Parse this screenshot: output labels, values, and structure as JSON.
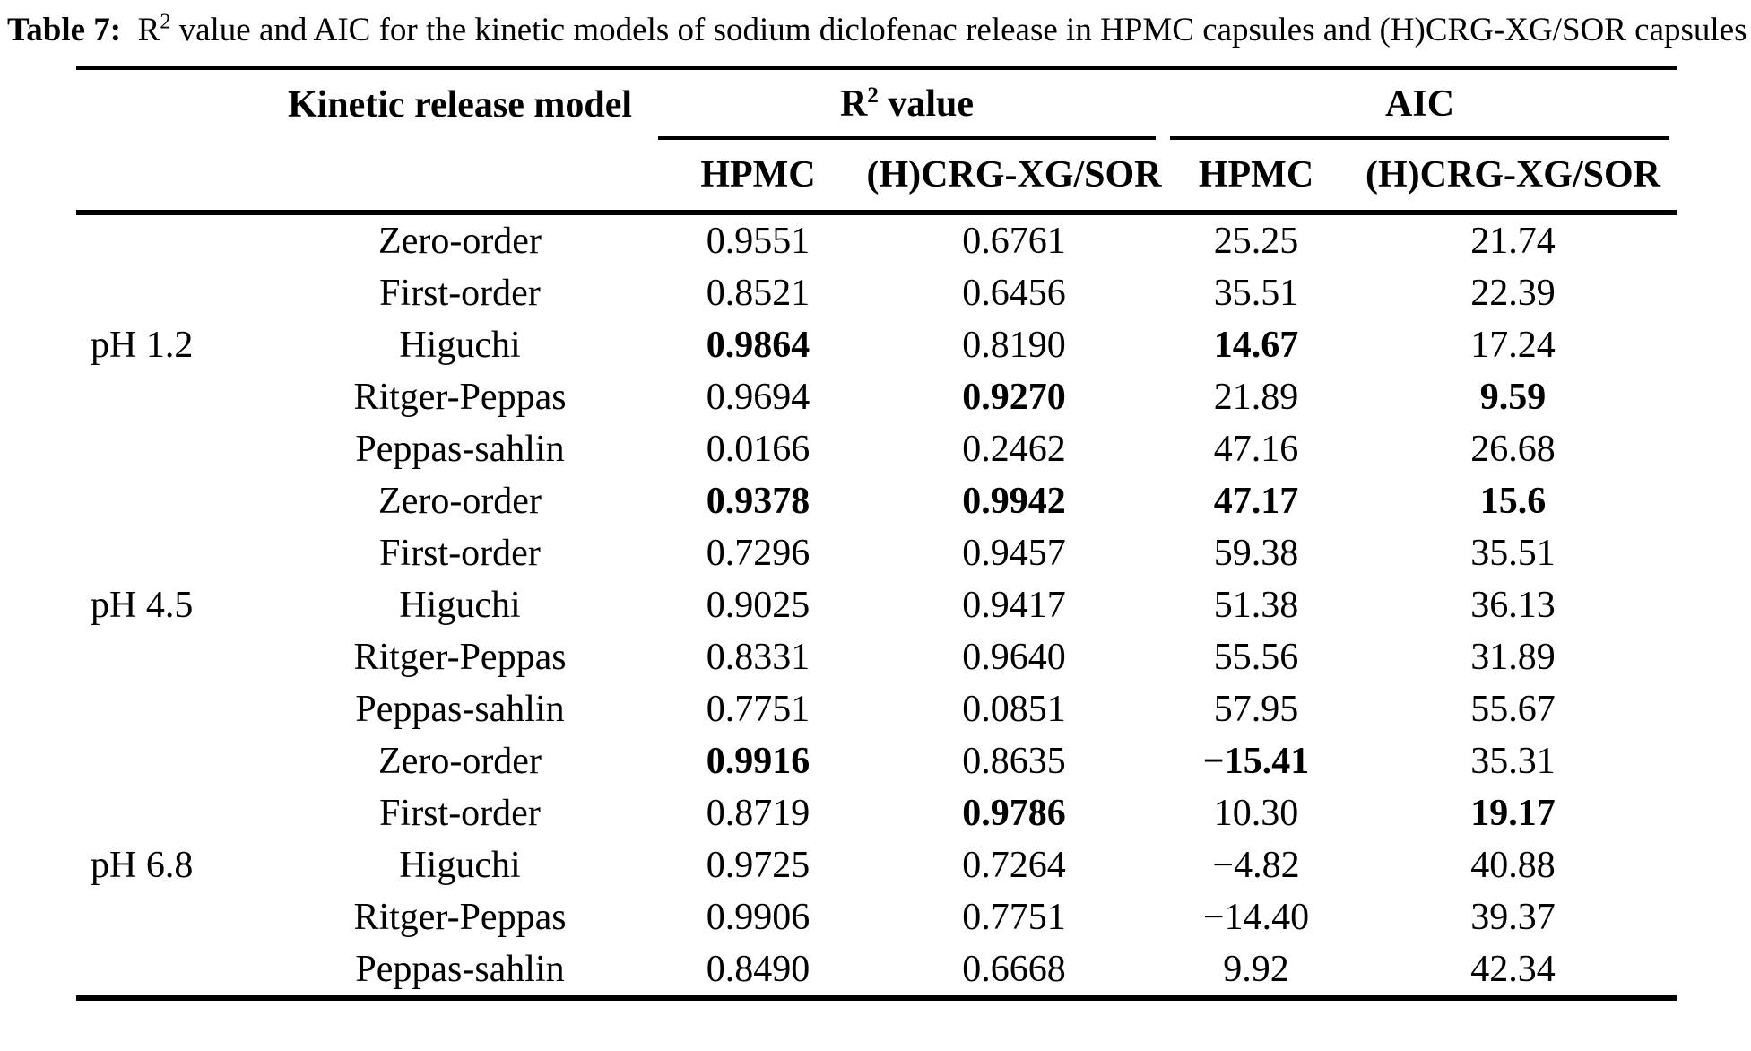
{
  "caption": {
    "label": "Table 7:",
    "r": "R",
    "sup": "2",
    "rest": " value and AIC for the kinetic models of sodium diclofenac release in HPMC capsules and (H)CRG-XG/SOR capsules"
  },
  "table": {
    "header": {
      "model_col": "Kinetic release model",
      "r2_group": {
        "pre": "R",
        "sup": "2",
        "post": " value"
      },
      "aic_group": "AIC",
      "subcols": [
        "HPMC",
        "(H)CRG-XG/SOR",
        "HPMC",
        "(H)CRG-XG/SOR"
      ]
    },
    "sections": [
      {
        "ph": "pH 1.2",
        "rows": [
          {
            "model": "Zero-order",
            "r2_hpmc": "0.9551",
            "r2_crg": "0.6761",
            "aic_hpmc": "25.25",
            "aic_crg": "21.74",
            "bold": []
          },
          {
            "model": "First-order",
            "r2_hpmc": "0.8521",
            "r2_crg": "0.6456",
            "aic_hpmc": "35.51",
            "aic_crg": "22.39",
            "bold": []
          },
          {
            "model": "Higuchi",
            "r2_hpmc": "0.9864",
            "r2_crg": "0.8190",
            "aic_hpmc": "14.67",
            "aic_crg": "17.24",
            "bold": [
              "r2_hpmc",
              "aic_hpmc"
            ]
          },
          {
            "model": "Ritger-Peppas",
            "r2_hpmc": "0.9694",
            "r2_crg": "0.9270",
            "aic_hpmc": "21.89",
            "aic_crg": "9.59",
            "bold": [
              "r2_crg",
              "aic_crg"
            ]
          },
          {
            "model": "Peppas-sahlin",
            "r2_hpmc": "0.0166",
            "r2_crg": "0.2462",
            "aic_hpmc": "47.16",
            "aic_crg": "26.68",
            "bold": []
          }
        ]
      },
      {
        "ph": "pH 4.5",
        "rows": [
          {
            "model": "Zero-order",
            "r2_hpmc": "0.9378",
            "r2_crg": "0.9942",
            "aic_hpmc": "47.17",
            "aic_crg": "15.6",
            "bold": [
              "r2_hpmc",
              "r2_crg",
              "aic_hpmc",
              "aic_crg"
            ]
          },
          {
            "model": "First-order",
            "r2_hpmc": "0.7296",
            "r2_crg": "0.9457",
            "aic_hpmc": "59.38",
            "aic_crg": "35.51",
            "bold": []
          },
          {
            "model": "Higuchi",
            "r2_hpmc": "0.9025",
            "r2_crg": "0.9417",
            "aic_hpmc": "51.38",
            "aic_crg": "36.13",
            "bold": []
          },
          {
            "model": "Ritger-Peppas",
            "r2_hpmc": "0.8331",
            "r2_crg": "0.9640",
            "aic_hpmc": "55.56",
            "aic_crg": "31.89",
            "bold": []
          },
          {
            "model": "Peppas-sahlin",
            "r2_hpmc": "0.7751",
            "r2_crg": "0.0851",
            "aic_hpmc": "57.95",
            "aic_crg": "55.67",
            "bold": []
          }
        ]
      },
      {
        "ph": "pH 6.8",
        "rows": [
          {
            "model": "Zero-order",
            "r2_hpmc": "0.9916",
            "r2_crg": "0.8635",
            "aic_hpmc": "−15.41",
            "aic_crg": "35.31",
            "bold": [
              "r2_hpmc",
              "aic_hpmc"
            ]
          },
          {
            "model": "First-order",
            "r2_hpmc": "0.8719",
            "r2_crg": "0.9786",
            "aic_hpmc": "10.30",
            "aic_crg": "19.17",
            "bold": [
              "r2_crg",
              "aic_crg"
            ]
          },
          {
            "model": "Higuchi",
            "r2_hpmc": "0.9725",
            "r2_crg": "0.7264",
            "aic_hpmc": "−4.82",
            "aic_crg": "40.88",
            "bold": []
          },
          {
            "model": "Ritger-Peppas",
            "r2_hpmc": "0.9906",
            "r2_crg": "0.7751",
            "aic_hpmc": "−14.40",
            "aic_crg": "39.37",
            "bold": []
          },
          {
            "model": "Peppas-sahlin",
            "r2_hpmc": "0.8490",
            "r2_crg": "0.6668",
            "aic_hpmc": "9.92",
            "aic_crg": "42.34",
            "bold": []
          }
        ]
      }
    ]
  }
}
